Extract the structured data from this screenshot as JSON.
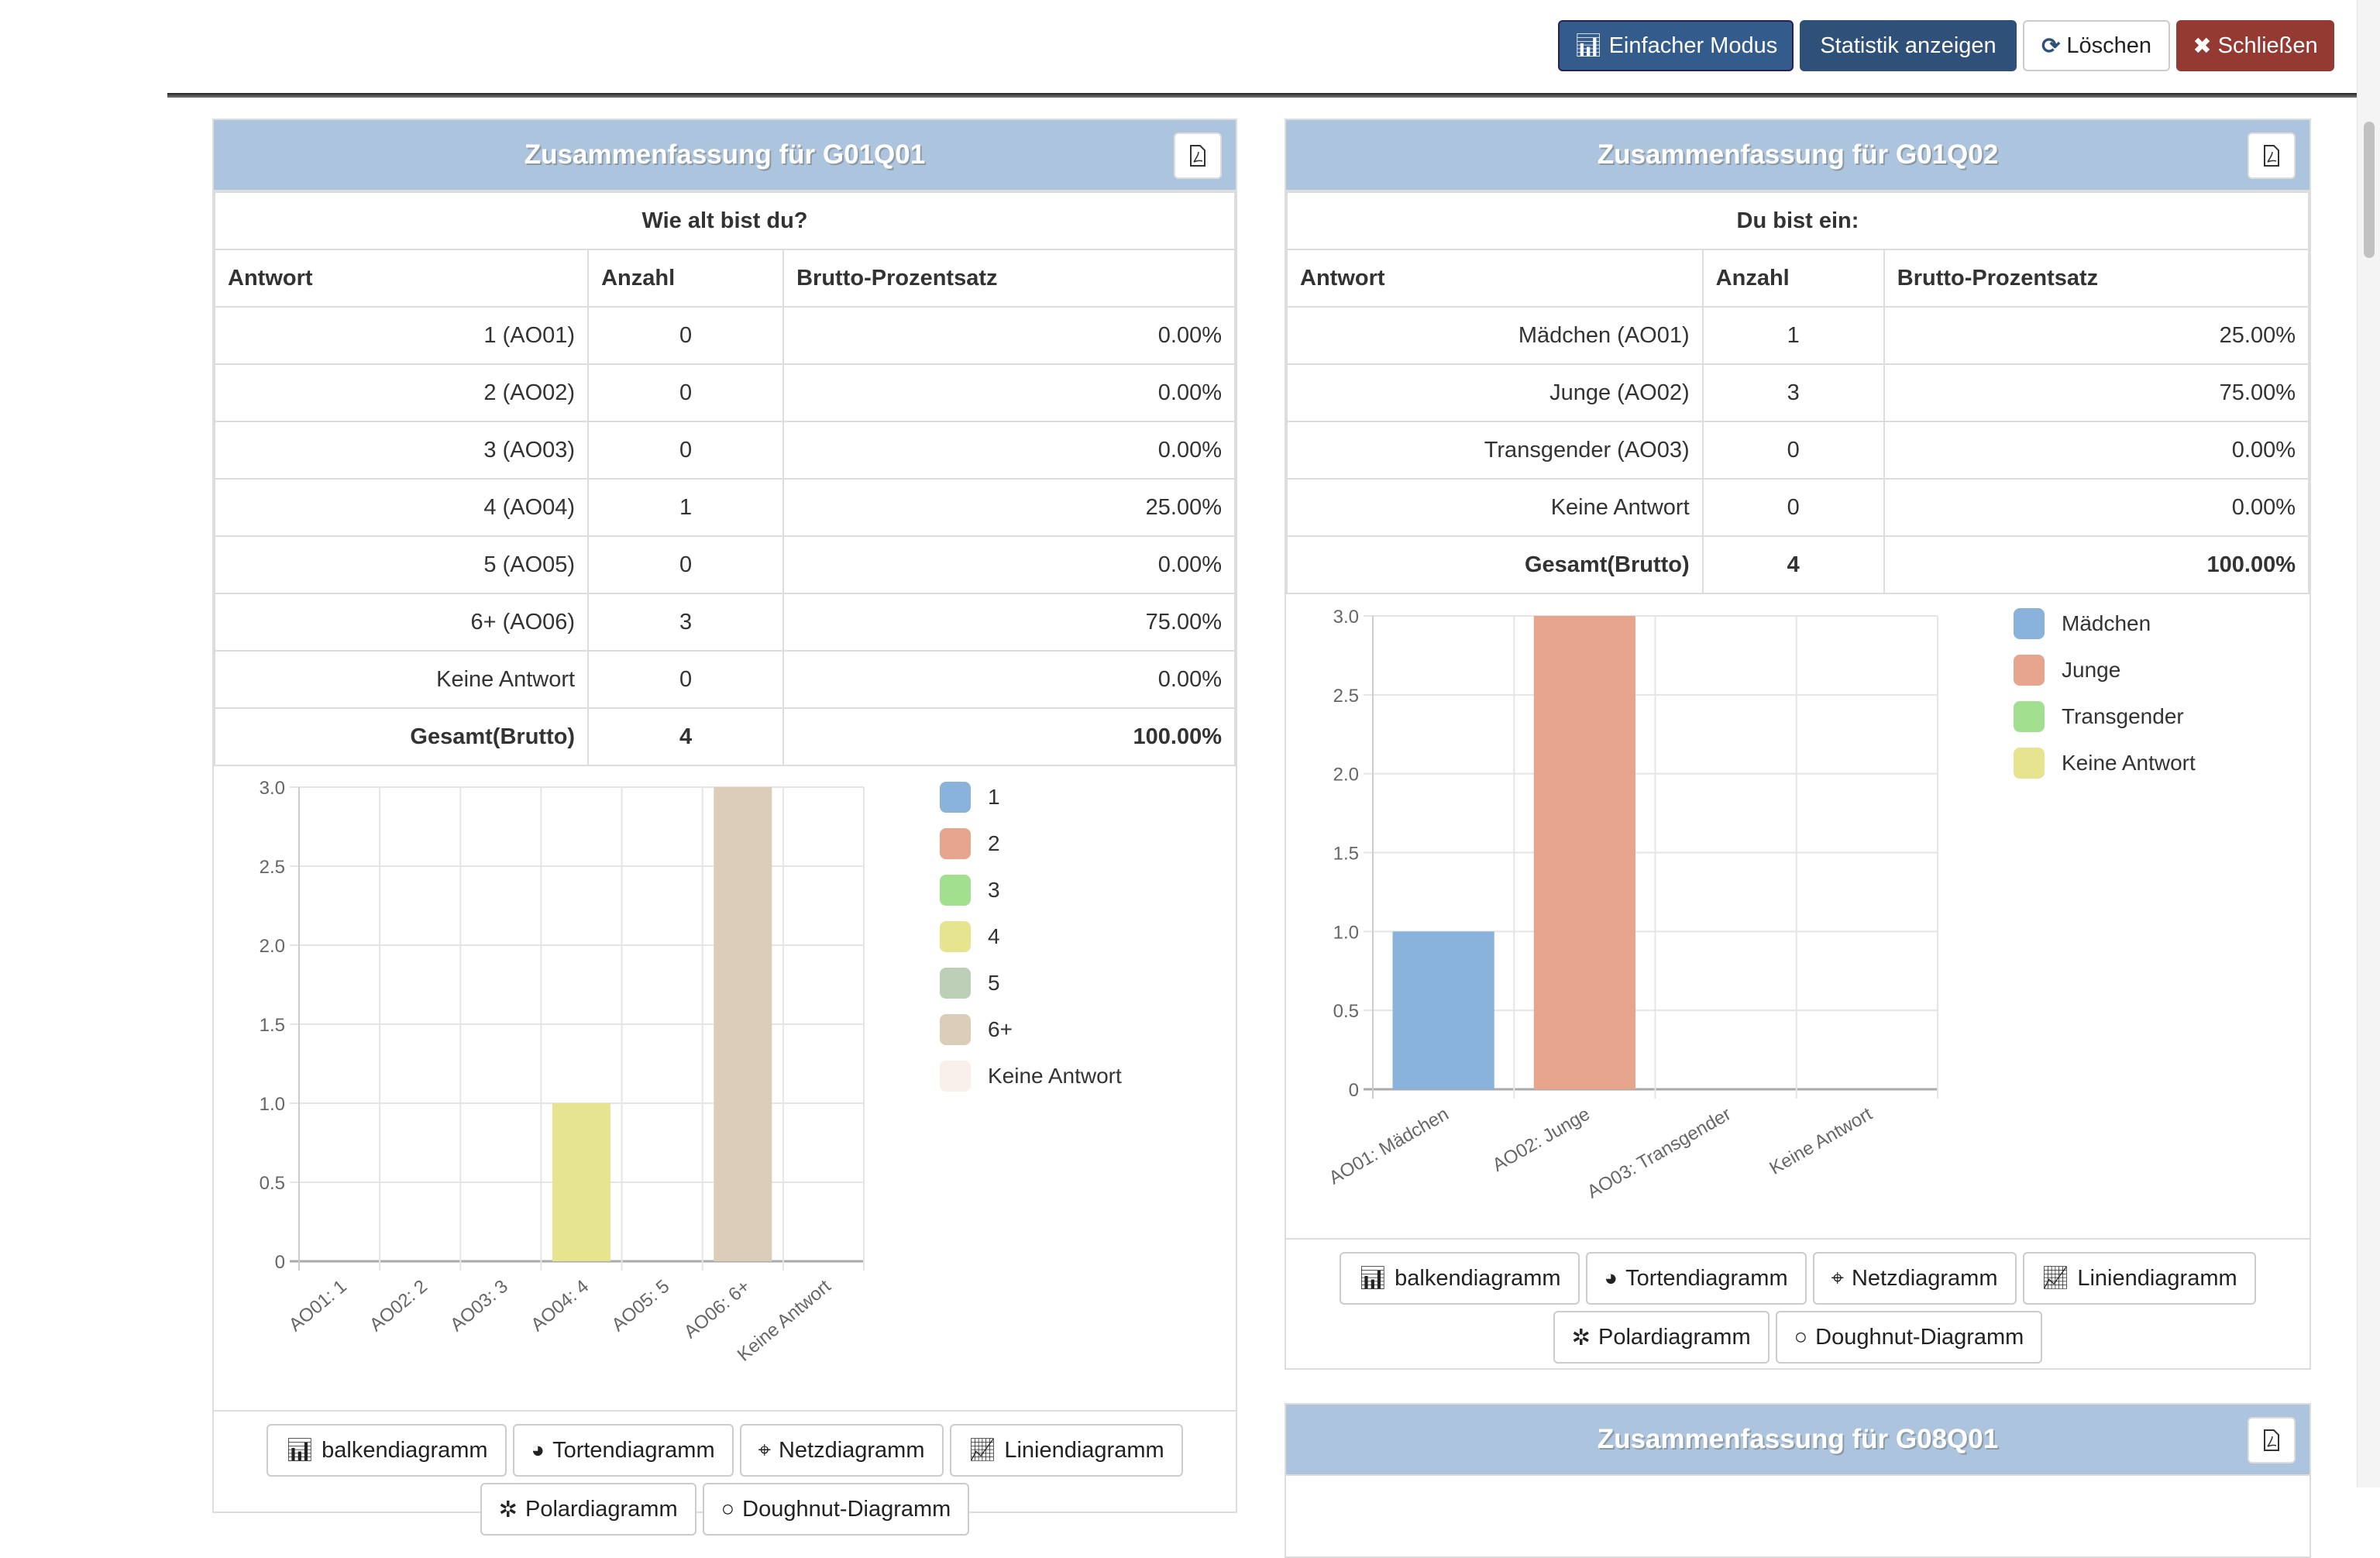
{
  "toolbar": {
    "simple_mode": "Einfacher Modus",
    "show_stats": "Statistik anzeigen",
    "clear": "Löschen",
    "close": "Schließen"
  },
  "colors": {
    "primary": "#335c8c",
    "dark": "#2f5179",
    "danger": "#953a32",
    "panel_header": "#adc4df"
  },
  "chart_buttons": [
    "balkendiagramm",
    "Tortendiagramm",
    "Netzdiagramm",
    "Liniendiagramm",
    "Polardiagramm",
    "Doughnut-Diagramm"
  ],
  "panels": [
    {
      "title": "Zusammenfassung für G01Q01",
      "question": "Wie alt bist du?",
      "columns": [
        "Antwort",
        "Anzahl",
        "Brutto-Prozentsatz"
      ],
      "rows": [
        [
          "1 (AO01)",
          "0",
          "0.00%"
        ],
        [
          "2 (AO02)",
          "0",
          "0.00%"
        ],
        [
          "3 (AO03)",
          "0",
          "0.00%"
        ],
        [
          "4 (AO04)",
          "1",
          "25.00%"
        ],
        [
          "5 (AO05)",
          "0",
          "0.00%"
        ],
        [
          "6+ (AO06)",
          "3",
          "75.00%"
        ],
        [
          "Keine Antwort",
          "0",
          "0.00%"
        ]
      ],
      "total": [
        "Gesamt(Brutto)",
        "4",
        "100.00%"
      ]
    },
    {
      "title": "Zusammenfassung für G01Q02",
      "question": "Du bist ein:",
      "columns": [
        "Antwort",
        "Anzahl",
        "Brutto-Prozentsatz"
      ],
      "rows": [
        [
          "Mädchen (AO01)",
          "1",
          "25.00%"
        ],
        [
          "Junge (AO02)",
          "3",
          "75.00%"
        ],
        [
          "Transgender (AO03)",
          "0",
          "0.00%"
        ],
        [
          "Keine Antwort",
          "0",
          "0.00%"
        ]
      ],
      "total": [
        "Gesamt(Brutto)",
        "4",
        "100.00%"
      ]
    },
    {
      "title": "Zusammenfassung für G08Q01"
    }
  ],
  "chart_data": [
    {
      "type": "bar",
      "categories": [
        "AO01: 1",
        "AO02: 2",
        "AO03: 3",
        "AO04: 4",
        "AO05: 5",
        "AO06: 6+",
        "Keine Antwort"
      ],
      "values": [
        0,
        0,
        0,
        1,
        0,
        3,
        0
      ],
      "ylim": [
        0,
        3
      ],
      "yticks": [
        "0",
        "0.5",
        "1.0",
        "1.5",
        "2.0",
        "2.5",
        "3.0"
      ],
      "grid": true,
      "legend_position": "right",
      "legend": [
        "1",
        "2",
        "3",
        "4",
        "5",
        "6+",
        "Keine Antwort"
      ],
      "colors": [
        "#8ab3dc",
        "#e7a58e",
        "#a2e08f",
        "#e6e48f",
        "#bbd0b6",
        "#dccdb8",
        "#f9f0eb"
      ]
    },
    {
      "type": "bar",
      "categories": [
        "AO01: Mädchen",
        "AO02: Junge",
        "AO03: Transgender",
        "Keine Antwort"
      ],
      "values": [
        1,
        3,
        0,
        0
      ],
      "ylim": [
        0,
        3
      ],
      "yticks": [
        "0",
        "0.5",
        "1.0",
        "1.5",
        "2.0",
        "2.5",
        "3.0"
      ],
      "grid": true,
      "legend_position": "right",
      "legend": [
        "Mädchen",
        "Junge",
        "Transgender",
        "Keine Antwort"
      ],
      "colors": [
        "#8ab3dc",
        "#e7a58e",
        "#a2e08f",
        "#e6e48f"
      ]
    }
  ]
}
